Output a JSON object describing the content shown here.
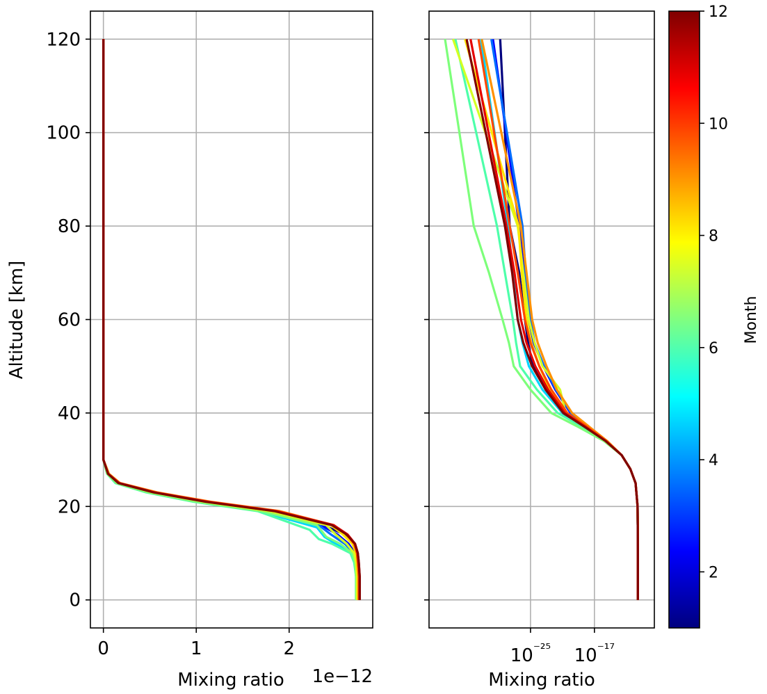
{
  "chart_data": [
    {
      "type": "line",
      "panel": "left",
      "xlabel": "Mixing ratio",
      "x_scale_label": "1e−12",
      "ylabel": "Altitude [km]",
      "x_scale": "linear",
      "xlim": [
        -0.14,
        2.9
      ],
      "ylim": [
        -6,
        126
      ],
      "x_ticks": [
        0,
        1,
        2
      ],
      "x_tick_labels": [
        "0",
        "1",
        "2"
      ],
      "y_ticks": [
        0,
        20,
        40,
        60,
        80,
        100,
        120
      ],
      "y_tick_labels": [
        "0",
        "20",
        "40",
        "60",
        "80",
        "100",
        "120"
      ],
      "grid": true,
      "units_note": "x values in units of 1e-12",
      "series": [
        {
          "month": 1,
          "color": "#00007f",
          "x": [
            2.74,
            2.74,
            2.73,
            2.72,
            2.7,
            2.6,
            2.25,
            1.7,
            1.0,
            0.5,
            0.15,
            0.05,
            0.0,
            0.0,
            0.0,
            0.0,
            0.0
          ],
          "y": [
            0,
            5,
            8,
            10,
            12,
            14,
            17,
            19,
            21,
            23,
            25,
            27,
            30,
            34,
            50,
            80,
            120
          ]
        },
        {
          "month": 2,
          "color": "#0000ff",
          "x": [
            2.74,
            2.74,
            2.73,
            2.71,
            2.64,
            2.52,
            2.3,
            1.72,
            1.02,
            0.5,
            0.15,
            0.05,
            0.0,
            0.0,
            0.0,
            0.0,
            0.0
          ],
          "y": [
            0,
            5,
            8,
            10,
            12,
            14,
            16.5,
            19,
            21,
            23,
            25,
            27,
            30,
            34,
            50,
            80,
            120
          ]
        },
        {
          "month": 3,
          "color": "#006cff",
          "x": [
            2.73,
            2.73,
            2.72,
            2.7,
            2.6,
            2.45,
            2.32,
            1.7,
            1.0,
            0.48,
            0.14,
            0.04,
            0.0,
            0.0,
            0.0,
            0.0,
            0.0
          ],
          "y": [
            0,
            5,
            8,
            10,
            12,
            14,
            16,
            19,
            21,
            23,
            25,
            27,
            30,
            34,
            50,
            80,
            120
          ]
        },
        {
          "month": 4,
          "color": "#00d4ff",
          "x": [
            2.72,
            2.72,
            2.71,
            2.68,
            2.5,
            2.38,
            2.3,
            1.68,
            0.98,
            0.47,
            0.13,
            0.04,
            0.0,
            0.0,
            0.0,
            0.0,
            0.0
          ],
          "y": [
            0,
            5,
            8,
            10,
            12,
            13.5,
            15.5,
            19,
            21,
            23,
            25,
            27,
            30,
            34,
            50,
            80,
            120
          ]
        },
        {
          "month": 5,
          "color": "#4dffaa",
          "x": [
            2.72,
            2.72,
            2.7,
            2.66,
            2.46,
            2.32,
            2.22,
            1.66,
            0.97,
            0.46,
            0.13,
            0.04,
            0.0,
            0.0,
            0.0,
            0.0,
            0.0
          ],
          "y": [
            0,
            5,
            8,
            10,
            12,
            13,
            15,
            19,
            21,
            23,
            25,
            27,
            30,
            34,
            50,
            80,
            120
          ]
        },
        {
          "month": 6,
          "color": "#7dff7a",
          "x": [
            2.72,
            2.72,
            2.71,
            2.68,
            2.55,
            2.4,
            2.3,
            1.7,
            1.0,
            0.48,
            0.14,
            0.04,
            0.0,
            0.0,
            0.0,
            0.0,
            0.0
          ],
          "y": [
            0,
            5,
            8,
            10,
            12,
            13.5,
            16,
            19,
            21,
            23,
            25,
            27,
            30,
            34,
            50,
            80,
            120
          ]
        },
        {
          "month": 7,
          "color": "#d4ff23",
          "x": [
            2.73,
            2.73,
            2.72,
            2.7,
            2.62,
            2.5,
            2.4,
            1.78,
            1.08,
            0.53,
            0.16,
            0.05,
            0.0,
            0.0,
            0.0,
            0.0,
            0.0
          ],
          "y": [
            0,
            5,
            8,
            10,
            12,
            14,
            16,
            19,
            21,
            23,
            25,
            27,
            30,
            34,
            50,
            80,
            120
          ]
        },
        {
          "month": 8,
          "color": "#ffe500",
          "x": [
            2.74,
            2.74,
            2.73,
            2.72,
            2.68,
            2.58,
            2.45,
            1.85,
            1.12,
            0.55,
            0.17,
            0.05,
            0.0,
            0.0,
            0.0,
            0.0,
            0.0
          ],
          "y": [
            0,
            5,
            8,
            10,
            12,
            14,
            16,
            19,
            21,
            23,
            25,
            27,
            30,
            34,
            50,
            80,
            120
          ]
        },
        {
          "month": 9,
          "color": "#ff9100",
          "x": [
            2.75,
            2.75,
            2.74,
            2.73,
            2.7,
            2.62,
            2.48,
            1.9,
            1.16,
            0.58,
            0.18,
            0.06,
            0.0,
            0.0,
            0.0,
            0.0,
            0.0
          ],
          "y": [
            0,
            5,
            8,
            10,
            12,
            14,
            16,
            19,
            21,
            23,
            25,
            27,
            30,
            34,
            50,
            80,
            120
          ]
        },
        {
          "month": 10,
          "color": "#ff4800",
          "x": [
            2.75,
            2.75,
            2.74,
            2.73,
            2.7,
            2.62,
            2.48,
            1.88,
            1.14,
            0.56,
            0.17,
            0.05,
            0.0,
            0.0,
            0.0,
            0.0,
            0.0
          ],
          "y": [
            0,
            5,
            8,
            10,
            12,
            14,
            16,
            19,
            21,
            23,
            25,
            27,
            30,
            34,
            50,
            80,
            120
          ]
        },
        {
          "month": 11,
          "color": "#e40000",
          "x": [
            2.76,
            2.76,
            2.75,
            2.74,
            2.71,
            2.63,
            2.48,
            1.86,
            1.12,
            0.55,
            0.17,
            0.05,
            0.0,
            0.0,
            0.0,
            0.0,
            0.0
          ],
          "y": [
            0,
            5,
            8,
            10,
            12,
            14,
            16,
            19,
            21,
            23,
            25,
            27,
            30,
            34,
            50,
            80,
            120
          ]
        },
        {
          "month": 12,
          "color": "#7f0000",
          "x": [
            2.76,
            2.76,
            2.75,
            2.74,
            2.71,
            2.62,
            2.46,
            1.84,
            1.1,
            0.54,
            0.16,
            0.05,
            0.0,
            0.0,
            0.0,
            0.0,
            0.0
          ],
          "y": [
            0,
            5,
            8,
            10,
            12,
            14,
            16,
            19,
            21,
            23,
            25,
            27,
            30,
            34,
            50,
            80,
            120
          ]
        }
      ]
    },
    {
      "type": "line",
      "panel": "right",
      "xlabel": "Mixing ratio",
      "x_scale": "log",
      "xlim_log10": [
        -37.7,
        -9.5
      ],
      "ylim": [
        -6,
        126
      ],
      "x_ticks_log10": [
        -25,
        -17
      ],
      "x_tick_labels": [
        "10⁻²⁵",
        "10⁻¹⁷"
      ],
      "y_ticks": [
        0,
        20,
        40,
        60,
        80,
        100,
        120
      ],
      "y_tick_labels_shown": false,
      "grid": true,
      "units_note": "x values are log10 of mixing ratio",
      "series": [
        {
          "month": 1,
          "color": "#00007f",
          "log10_x": [
            -11.56,
            -11.56,
            -11.58,
            -11.6,
            -11.85,
            -12.5,
            -13.6,
            -15.7,
            -18.4,
            -21.0,
            -23.1,
            -24.7,
            -25.3,
            -25.7,
            -26.4,
            -27.6,
            -28.8
          ],
          "y": [
            0,
            10,
            16,
            20,
            25,
            28,
            31,
            34,
            37,
            40,
            45,
            50,
            55,
            60,
            70,
            80,
            120
          ]
        },
        {
          "month": 2,
          "color": "#0000ff",
          "log10_x": [
            -11.56,
            -11.56,
            -11.58,
            -11.6,
            -11.85,
            -12.5,
            -13.6,
            -15.6,
            -17.9,
            -20.0,
            -21.9,
            -23.4,
            -24.6,
            -25.2,
            -25.8,
            -26.4,
            -29.7
          ],
          "y": [
            0,
            10,
            16,
            20,
            25,
            28,
            31,
            34,
            37,
            40,
            45,
            50,
            55,
            60,
            70,
            80,
            120
          ]
        },
        {
          "month": 3,
          "color": "#006cff",
          "log10_x": [
            -11.56,
            -11.56,
            -11.58,
            -11.6,
            -11.85,
            -12.5,
            -13.6,
            -15.5,
            -17.8,
            -19.9,
            -21.8,
            -23.3,
            -24.5,
            -25.0,
            -25.6,
            -26.0,
            -29.9
          ],
          "y": [
            0,
            10,
            16,
            20,
            25,
            28,
            31,
            34,
            37,
            40,
            45,
            50,
            55,
            60,
            70,
            80,
            120
          ]
        },
        {
          "month": 4,
          "color": "#00d4ff",
          "log10_x": [
            -11.56,
            -11.56,
            -11.58,
            -11.6,
            -11.85,
            -12.5,
            -13.6,
            -15.6,
            -18.0,
            -21.0,
            -23.5,
            -25.2,
            -26.0,
            -26.6,
            -27.2,
            -27.8,
            -31.2
          ],
          "y": [
            0,
            10,
            16,
            20,
            25,
            28,
            31,
            34,
            37,
            40,
            45,
            50,
            55,
            60,
            70,
            80,
            120
          ]
        },
        {
          "month": 5,
          "color": "#4dffaa",
          "log10_x": [
            -11.56,
            -11.56,
            -11.58,
            -11.6,
            -11.85,
            -12.5,
            -13.6,
            -15.7,
            -18.5,
            -21.6,
            -24.2,
            -26.3,
            -26.8,
            -27.2,
            -28.2,
            -29.2,
            -34.4
          ],
          "y": [
            0,
            10,
            16,
            20,
            25,
            28,
            31,
            34,
            37,
            40,
            45,
            50,
            55,
            60,
            70,
            80,
            120
          ]
        },
        {
          "month": 6,
          "color": "#7dff7a",
          "log10_x": [
            -11.56,
            -11.56,
            -11.58,
            -11.6,
            -11.85,
            -12.5,
            -13.6,
            -15.8,
            -19.0,
            -22.4,
            -25.0,
            -27.1,
            -27.7,
            -28.5,
            -30.2,
            -32.1,
            -35.7
          ],
          "y": [
            0,
            10,
            16,
            20,
            25,
            28,
            31,
            34,
            37,
            40,
            45,
            50,
            55,
            60,
            70,
            80,
            120
          ]
        },
        {
          "month": 7,
          "color": "#d4ff23",
          "log10_x": [
            -11.56,
            -11.56,
            -11.58,
            -11.6,
            -11.85,
            -12.5,
            -13.6,
            -15.6,
            -18.1,
            -20.6,
            -21.3,
            -23.5,
            -24.5,
            -25.2,
            -25.9,
            -26.6,
            -34.7
          ],
          "y": [
            0,
            10,
            16,
            20,
            25,
            28,
            31,
            34,
            37,
            40,
            45,
            50,
            55,
            60,
            70,
            80,
            120
          ]
        },
        {
          "month": 8,
          "color": "#ffe500",
          "log10_x": [
            -11.56,
            -11.56,
            -11.58,
            -11.6,
            -11.85,
            -12.5,
            -13.6,
            -15.5,
            -17.8,
            -20.6,
            -22.6,
            -23.9,
            -24.9,
            -25.5,
            -26.1,
            -26.5,
            -33.2
          ],
          "y": [
            0,
            10,
            16,
            20,
            25,
            28,
            31,
            34,
            37,
            40,
            45,
            50,
            55,
            60,
            70,
            80,
            120
          ]
        },
        {
          "month": 9,
          "color": "#ff9100",
          "log10_x": [
            -11.56,
            -11.56,
            -11.58,
            -11.6,
            -11.85,
            -12.5,
            -13.6,
            -15.4,
            -17.6,
            -19.8,
            -21.7,
            -23.0,
            -24.1,
            -24.8,
            -25.5,
            -26.2,
            -31.1
          ],
          "y": [
            0,
            10,
            16,
            20,
            25,
            28,
            31,
            34,
            37,
            40,
            45,
            50,
            55,
            60,
            70,
            80,
            120
          ]
        },
        {
          "month": 10,
          "color": "#ff4800",
          "log10_x": [
            -11.56,
            -11.56,
            -11.58,
            -11.6,
            -11.85,
            -12.5,
            -13.6,
            -15.5,
            -17.9,
            -20.4,
            -22.4,
            -23.9,
            -25.0,
            -25.7,
            -26.6,
            -27.6,
            -31.5
          ],
          "y": [
            0,
            10,
            16,
            20,
            25,
            28,
            31,
            34,
            37,
            40,
            45,
            50,
            55,
            60,
            70,
            80,
            120
          ]
        },
        {
          "month": 11,
          "color": "#e40000",
          "log10_x": [
            -11.56,
            -11.56,
            -11.58,
            -11.6,
            -11.85,
            -12.5,
            -13.6,
            -15.6,
            -18.1,
            -20.7,
            -22.8,
            -24.4,
            -25.5,
            -26.2,
            -27.0,
            -28.0,
            -32.5
          ],
          "y": [
            0,
            10,
            16,
            20,
            25,
            28,
            31,
            34,
            37,
            40,
            45,
            50,
            55,
            60,
            70,
            80,
            120
          ]
        },
        {
          "month": 12,
          "color": "#7f0000",
          "log10_x": [
            -11.56,
            -11.56,
            -11.58,
            -11.6,
            -11.85,
            -12.5,
            -13.6,
            -15.6,
            -18.2,
            -20.9,
            -23.1,
            -24.8,
            -25.9,
            -26.6,
            -27.3,
            -28.2,
            -33.0
          ],
          "y": [
            0,
            10,
            16,
            20,
            25,
            28,
            31,
            34,
            37,
            40,
            45,
            50,
            55,
            60,
            70,
            80,
            120
          ]
        }
      ]
    }
  ],
  "colorbar": {
    "label": "Month",
    "min": 1,
    "max": 12,
    "ticks": [
      2,
      4,
      6,
      8,
      10,
      12
    ],
    "tick_labels": [
      "2",
      "4",
      "6",
      "8",
      "10",
      "12"
    ],
    "colormap": "jet",
    "colormap_stops": [
      "#00007f",
      "#0000ff",
      "#0080ff",
      "#00ffff",
      "#80ff80",
      "#ffff00",
      "#ff8000",
      "#ff0000",
      "#7f0000"
    ]
  }
}
